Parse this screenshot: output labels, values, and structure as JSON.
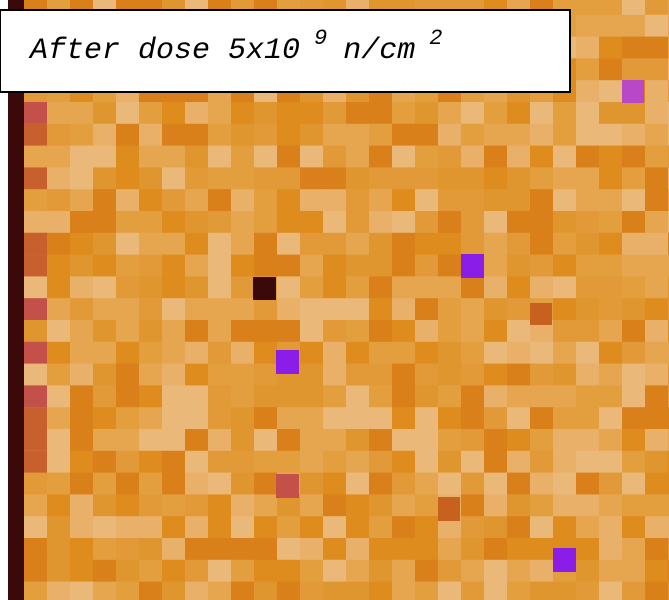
{
  "label": {
    "text": "After dose 5x10",
    "exponent": "9",
    "unit": "n/cm",
    "unit_exponent": "2"
  }
}
